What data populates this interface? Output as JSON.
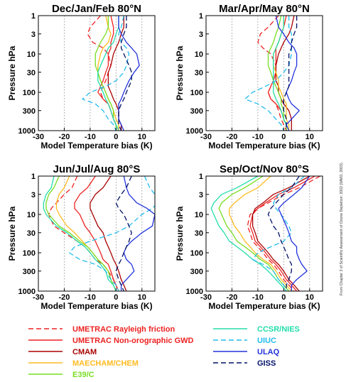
{
  "source_note": "From Chapter 3 of Scientific Assessment of Ozone Depletion: 2002 (WMO, 2003).",
  "chart_data": [
    {
      "type": "line",
      "title": "Dec/Jan/Feb 80°N",
      "xlabel": "Model Temperature bias (K)",
      "ylabel": "Pressure hPa",
      "xlim": [
        -30,
        15
      ],
      "xticks": [
        -30,
        -20,
        -10,
        0,
        10
      ],
      "y_scale": "log",
      "y_inverted": true,
      "ylim": [
        1000,
        1
      ],
      "yticks": [
        1,
        3,
        10,
        30,
        100,
        300,
        1000
      ],
      "grid": "dotted vertical lines at x = -20, -10, 0, 10",
      "pressure": [
        1,
        2,
        3,
        5,
        7,
        10,
        20,
        30,
        50,
        70,
        100,
        150,
        200,
        300,
        500,
        700,
        1000
      ],
      "series": [
        {
          "name": "UMETRAC Rayleigh friction",
          "values": [
            -6,
            -10,
            -11,
            -9,
            -5,
            -3,
            -2,
            -3,
            -4,
            -5,
            -6,
            -5,
            -3,
            -2,
            -1,
            0,
            1
          ]
        },
        {
          "name": "UMETRAC Non-orographic GWD",
          "values": [
            -2,
            -1,
            -1,
            -2,
            -2,
            -3,
            -3,
            -4,
            -5,
            -6,
            -7,
            -5,
            -3,
            -2,
            -1,
            0,
            1
          ]
        },
        {
          "name": "CMAM",
          "values": [
            3,
            3,
            2,
            1,
            0,
            -1,
            -2,
            -3,
            -3,
            -3,
            -2,
            -1,
            0,
            1,
            1,
            2,
            2
          ]
        },
        {
          "name": "MAECHAM/CHEM",
          "values": [
            -4,
            -3,
            -2,
            -3,
            -5,
            -6,
            -7,
            -7,
            -6,
            -5,
            -4,
            -3,
            -2,
            -1,
            0,
            1,
            1
          ]
        },
        {
          "name": "E39/C",
          "values": [
            -3,
            -3,
            -4,
            -6,
            -7,
            -8,
            -8,
            -7,
            -6,
            -5,
            -4,
            -3,
            -2,
            -1,
            -1,
            0,
            0
          ]
        },
        {
          "name": "CCSR/NIES",
          "values": [
            1,
            1,
            0,
            -1,
            -3,
            -4,
            -6,
            -7,
            -7,
            -6,
            -5,
            -4,
            -3,
            -2,
            -1,
            0,
            1
          ]
        },
        {
          "name": "UIUC",
          "values": [
            3,
            2,
            1,
            2,
            4,
            5,
            4,
            3,
            0,
            -4,
            -10,
            -13,
            -8,
            -5,
            -3,
            -1,
            0
          ]
        },
        {
          "name": "ULAQ",
          "values": [
            1,
            1,
            2,
            4,
            6,
            8,
            9,
            7,
            5,
            4,
            3,
            2,
            1,
            1,
            1,
            2,
            3
          ]
        },
        {
          "name": "GISS",
          "values": [
            4,
            4,
            3,
            2,
            2,
            3,
            5,
            6,
            6,
            5,
            4,
            3,
            2,
            1,
            1,
            1,
            2
          ]
        }
      ]
    },
    {
      "type": "line",
      "title": "Mar/Apr/May 80°N",
      "xlabel": "Model Temperature bias (K)",
      "ylabel": "Pressure hPa",
      "xlim": [
        -30,
        15
      ],
      "xticks": [
        -30,
        -20,
        -10,
        0,
        10
      ],
      "y_scale": "log",
      "y_inverted": true,
      "ylim": [
        1000,
        1
      ],
      "yticks": [
        1,
        3,
        10,
        30,
        100,
        300,
        1000
      ],
      "grid": "dotted vertical lines at x = -20, -10, 0, 10",
      "pressure": [
        1,
        2,
        3,
        5,
        7,
        10,
        20,
        30,
        50,
        70,
        100,
        150,
        200,
        300,
        500,
        700,
        1000
      ],
      "series": [
        {
          "name": "UMETRAC Rayleigh friction",
          "values": [
            -2,
            -6,
            -9,
            -10,
            -8,
            -5,
            -3,
            -3,
            -4,
            -5,
            -6,
            -5,
            -3,
            -2,
            -1,
            0,
            1
          ]
        },
        {
          "name": "UMETRAC Non-orographic GWD",
          "values": [
            1,
            0,
            -1,
            -2,
            -3,
            -3,
            -3,
            -3,
            -4,
            -5,
            -6,
            -5,
            -3,
            -1,
            0,
            1,
            1
          ]
        },
        {
          "name": "CMAM",
          "values": [
            4,
            3,
            2,
            0,
            -1,
            -2,
            -3,
            -3,
            -3,
            -2,
            -2,
            -1,
            0,
            2,
            3,
            3,
            3
          ]
        },
        {
          "name": "MAECHAM/CHEM",
          "values": [
            0,
            0,
            -1,
            -2,
            -3,
            -4,
            -4,
            -3,
            -2,
            -2,
            -1,
            0,
            1,
            1,
            1,
            2,
            2
          ]
        },
        {
          "name": "E39/C",
          "values": [
            -1,
            -2,
            -3,
            -4,
            -5,
            -6,
            -6,
            -5,
            -4,
            -3,
            -2,
            -1,
            -1,
            0,
            0,
            1,
            1
          ]
        },
        {
          "name": "CCSR/NIES",
          "values": [
            0,
            0,
            -1,
            -2,
            -3,
            -4,
            -4,
            -4,
            -4,
            -4,
            -4,
            -3,
            -2,
            -1,
            0,
            1,
            2
          ]
        },
        {
          "name": "UIUC",
          "values": [
            2,
            2,
            3,
            3,
            3,
            3,
            2,
            0,
            -3,
            -7,
            -12,
            -15,
            -10,
            -6,
            -3,
            -1,
            0
          ]
        },
        {
          "name": "ULAQ",
          "values": [
            -3,
            -2,
            0,
            2,
            4,
            5,
            5,
            4,
            3,
            2,
            1,
            2,
            3,
            6,
            3,
            1,
            2
          ]
        },
        {
          "name": "GISS",
          "values": [
            5,
            5,
            4,
            3,
            3,
            2,
            2,
            2,
            2,
            2,
            1,
            0,
            0,
            0,
            1,
            1,
            1
          ]
        }
      ]
    },
    {
      "type": "line",
      "title": "Jun/Jul/Aug 80°S",
      "xlabel": "Model Temperature bias (K)",
      "ylabel": "Pressure hPa",
      "xlim": [
        -30,
        15
      ],
      "xticks": [
        -30,
        -20,
        -10,
        0,
        10
      ],
      "y_scale": "log",
      "y_inverted": true,
      "ylim": [
        1000,
        1
      ],
      "yticks": [
        1,
        3,
        10,
        30,
        100,
        300,
        1000
      ],
      "grid": "dotted vertical lines at x = -20, -10, 0, 10",
      "pressure": [
        1,
        2,
        3,
        5,
        7,
        10,
        20,
        30,
        50,
        70,
        100,
        150,
        200,
        300,
        500,
        700,
        1000
      ],
      "series": [
        {
          "name": "UMETRAC Rayleigh friction",
          "values": [
            -15,
            -17,
            -20,
            -23,
            -25,
            -26,
            -24,
            -20,
            -15,
            -12,
            -10,
            -8,
            -5,
            -3,
            -1,
            0,
            1
          ]
        },
        {
          "name": "UMETRAC Non-orographic GWD",
          "values": [
            -8,
            -11,
            -14,
            -16,
            -16,
            -14,
            -12,
            -10,
            -8,
            -7,
            -6,
            -5,
            -3,
            -2,
            -1,
            0,
            1
          ]
        },
        {
          "name": "CMAM",
          "values": [
            -2,
            -5,
            -8,
            -10,
            -10,
            -9,
            -7,
            -5,
            -4,
            -3,
            -2,
            -1,
            0,
            1,
            2,
            3,
            4
          ]
        },
        {
          "name": "MAECHAM/CHEM",
          "values": [
            -18,
            -20,
            -22,
            -23,
            -23,
            -22,
            -19,
            -16,
            -13,
            -11,
            -9,
            -7,
            -5,
            -3,
            -2,
            -1,
            0
          ]
        },
        {
          "name": "E39/C",
          "values": [
            -22,
            -24,
            -26,
            -27,
            -27,
            -26,
            -22,
            -18,
            -14,
            -11,
            -9,
            -7,
            -5,
            -3,
            -2,
            -1,
            0
          ]
        },
        {
          "name": "CCSR/NIES",
          "values": [
            -24,
            -25,
            -27,
            -28,
            -28,
            -27,
            -23,
            -19,
            -15,
            -12,
            -10,
            -8,
            -6,
            -4,
            -3,
            -1,
            0
          ]
        },
        {
          "name": "UIUC",
          "values": [
            11,
            13,
            15,
            16,
            14,
            10,
            5,
            0,
            -10,
            -16,
            -18,
            -14,
            -8,
            -4,
            -2,
            0,
            1
          ]
        },
        {
          "name": "ULAQ",
          "values": [
            3,
            4,
            5,
            8,
            12,
            15,
            14,
            10,
            6,
            4,
            3,
            4,
            6,
            7,
            4,
            2,
            2
          ]
        },
        {
          "name": "GISS",
          "values": [
            6,
            4,
            2,
            0,
            1,
            3,
            5,
            6,
            5,
            4,
            3,
            2,
            1,
            0,
            1,
            2,
            3
          ]
        }
      ]
    },
    {
      "type": "line",
      "title": "Sep/Oct/Nov 80°S",
      "xlabel": "Model Temperature bias (K)",
      "ylabel": "Pressure hPa",
      "xlim": [
        -30,
        15
      ],
      "xticks": [
        -30,
        -20,
        -10,
        0,
        10
      ],
      "y_scale": "log",
      "y_inverted": true,
      "ylim": [
        1000,
        1
      ],
      "yticks": [
        1,
        3,
        10,
        30,
        100,
        300,
        1000
      ],
      "grid": "dotted vertical lines at x = -20, -10, 0, 10",
      "pressure": [
        1,
        2,
        3,
        5,
        7,
        10,
        20,
        30,
        50,
        70,
        100,
        150,
        200,
        300,
        500,
        700,
        1000
      ],
      "series": [
        {
          "name": "UMETRAC Rayleigh friction",
          "values": [
            14,
            6,
            0,
            -6,
            -10,
            -13,
            -14,
            -13,
            -12,
            -10,
            -8,
            -6,
            -4,
            -2,
            0,
            2,
            4
          ]
        },
        {
          "name": "UMETRAC Non-orographic GWD",
          "values": [
            12,
            4,
            -2,
            -7,
            -10,
            -12,
            -13,
            -12,
            -11,
            -9,
            -7,
            -5,
            -3,
            -1,
            1,
            3,
            5
          ]
        },
        {
          "name": "CMAM",
          "values": [
            10,
            2,
            -4,
            -8,
            -11,
            -12,
            -12,
            -11,
            -10,
            -8,
            -6,
            -4,
            -2,
            0,
            2,
            4,
            6
          ]
        },
        {
          "name": "MAECHAM/CHEM",
          "values": [
            -5,
            -10,
            -15,
            -19,
            -21,
            -21,
            -19,
            -17,
            -15,
            -13,
            -11,
            -8,
            -5,
            -3,
            -1,
            1,
            3
          ]
        },
        {
          "name": "E39/C",
          "values": [
            -8,
            -15,
            -20,
            -24,
            -25,
            -24,
            -22,
            -20,
            -18,
            -15,
            -12,
            -9,
            -6,
            -4,
            -2,
            0,
            2
          ]
        },
        {
          "name": "CCSR/NIES",
          "values": [
            -10,
            -18,
            -24,
            -27,
            -28,
            -27,
            -25,
            -23,
            -21,
            -18,
            -15,
            -12,
            -9,
            -6,
            -3,
            -1,
            1
          ]
        },
        {
          "name": "UIUC",
          "values": [
            8,
            3,
            -2,
            -4,
            -3,
            -1,
            2,
            3,
            0,
            -5,
            -10,
            -12,
            -8,
            -4,
            -2,
            0,
            1
          ]
        },
        {
          "name": "ULAQ",
          "values": [
            10,
            7,
            4,
            0,
            -2,
            -1,
            1,
            2,
            3,
            5,
            5,
            6,
            7,
            9,
            5,
            3,
            3
          ]
        },
        {
          "name": "GISS",
          "values": [
            6,
            3,
            0,
            -3,
            -5,
            -6,
            -4,
            -2,
            -1,
            0,
            1,
            2,
            3,
            3,
            2,
            1,
            1
          ]
        }
      ]
    }
  ],
  "legend": [
    {
      "name": "UMETRAC Rayleigh friction",
      "color": "#ee2222",
      "dash": "dashed"
    },
    {
      "name": "UMETRAC Non-orographic GWD",
      "color": "#ee2222",
      "dash": "solid"
    },
    {
      "name": "CMAM",
      "color": "#aa0000",
      "dash": "solid"
    },
    {
      "name": "MAECHAM/CHEM",
      "color": "#ffbb22",
      "dash": "solid"
    },
    {
      "name": "E39/C",
      "color": "#77dd22",
      "dash": "solid"
    },
    {
      "name": "CCSR/NIES",
      "color": "#22ddaa",
      "dash": "solid"
    },
    {
      "name": "UIUC",
      "color": "#22bbee",
      "dash": "dashed"
    },
    {
      "name": "ULAQ",
      "color": "#2233dd",
      "dash": "solid"
    },
    {
      "name": "GISS",
      "color": "#001166",
      "dash": "dashed"
    }
  ]
}
